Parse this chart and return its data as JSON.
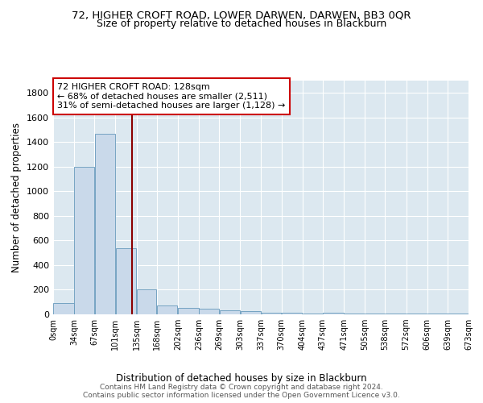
{
  "title1": "72, HIGHER CROFT ROAD, LOWER DARWEN, DARWEN, BB3 0QR",
  "title2": "Size of property relative to detached houses in Blackburn",
  "xlabel": "Distribution of detached houses by size in Blackburn",
  "ylabel": "Number of detached properties",
  "bin_edges": [
    0,
    34,
    67,
    101,
    135,
    168,
    202,
    236,
    269,
    303,
    337,
    370,
    404,
    437,
    471,
    505,
    538,
    572,
    606,
    639,
    673
  ],
  "bar_heights": [
    90,
    1200,
    1470,
    535,
    205,
    75,
    50,
    45,
    35,
    25,
    15,
    10,
    5,
    15,
    5,
    5,
    5,
    5,
    5,
    5
  ],
  "bar_color": "#c9d9ea",
  "bar_edgecolor": "#6699bb",
  "property_size": 128,
  "red_line_color": "#8b0000",
  "annotation_box_edgecolor": "#cc0000",
  "annotation_line1": "72 HIGHER CROFT ROAD: 128sqm",
  "annotation_line2": "← 68% of detached houses are smaller (2,511)",
  "annotation_line3": "31% of semi-detached houses are larger (1,128) →",
  "ylim": [
    0,
    1900
  ],
  "yticks": [
    0,
    200,
    400,
    600,
    800,
    1000,
    1200,
    1400,
    1600,
    1800
  ],
  "background_color": "#dce8f0",
  "grid_color": "#ffffff",
  "footnote": "Contains HM Land Registry data © Crown copyright and database right 2024.\nContains public sector information licensed under the Open Government Licence v3.0.",
  "title1_fontsize": 9.5,
  "title2_fontsize": 9,
  "xlabel_fontsize": 8.5,
  "ylabel_fontsize": 8.5,
  "footnote_fontsize": 6.5
}
